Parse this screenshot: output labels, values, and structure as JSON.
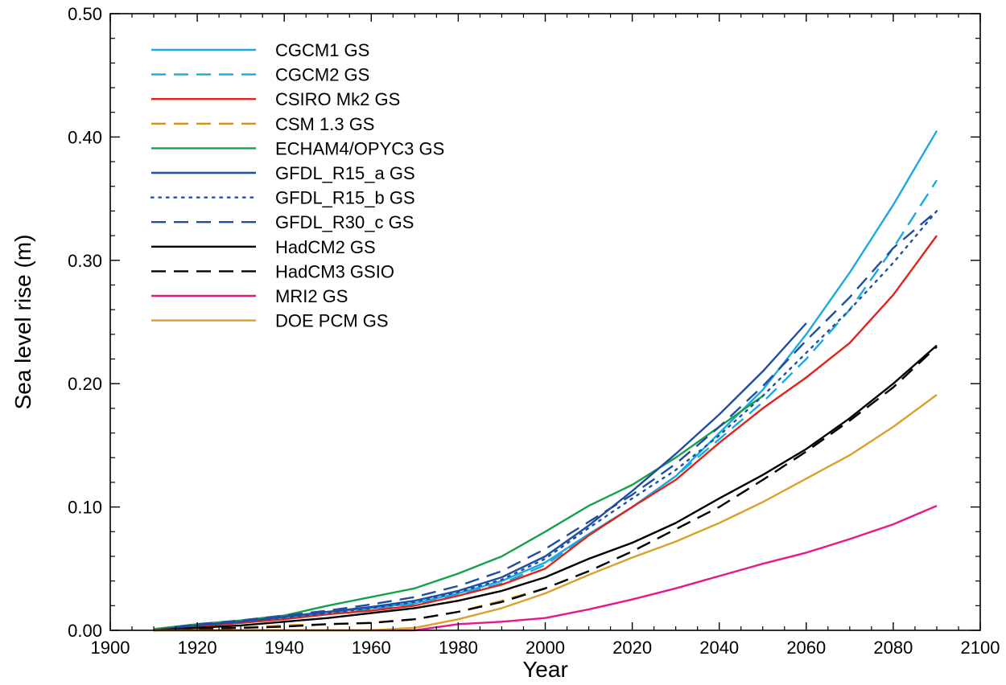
{
  "chart_data": {
    "type": "line",
    "title": "",
    "xlabel": "Year",
    "ylabel": "Sea level rise (m)",
    "xlim": [
      1900,
      2100
    ],
    "ylim": [
      0.0,
      0.5
    ],
    "x_ticks": [
      1900,
      1920,
      1940,
      1960,
      1980,
      2000,
      2020,
      2040,
      2060,
      2080,
      2100
    ],
    "x_tick_labels": [
      "1900",
      "1920",
      "1940",
      "1960",
      "1980",
      "2000",
      "2020",
      "2040",
      "2060",
      "2080",
      "2100"
    ],
    "y_ticks": [
      0.0,
      0.1,
      0.2,
      0.3,
      0.4,
      0.5
    ],
    "y_tick_labels": [
      "0.00",
      "0.10",
      "0.20",
      "0.30",
      "0.40",
      "0.50"
    ],
    "grid": false,
    "legend_position": "top-left",
    "series": [
      {
        "name": "CGCM1 GS",
        "color": "#1ba9e1",
        "dash": "solid",
        "x": [
          1910,
          1920,
          1930,
          1940,
          1950,
          1960,
          1970,
          1980,
          1990,
          2000,
          2010,
          2020,
          2030,
          2040,
          2050,
          2060,
          2070,
          2080,
          2090
        ],
        "y": [
          0.0,
          0.004,
          0.007,
          0.01,
          0.015,
          0.018,
          0.022,
          0.03,
          0.04,
          0.055,
          0.078,
          0.1,
          0.125,
          0.16,
          0.195,
          0.24,
          0.29,
          0.345,
          0.405
        ]
      },
      {
        "name": "CGCM2 GS",
        "color": "#1ba9e1",
        "dash": "dashed",
        "x": [
          1910,
          1920,
          1930,
          1940,
          1950,
          1960,
          1970,
          1980,
          1990,
          2000,
          2010,
          2020,
          2030,
          2040,
          2050,
          2060,
          2070,
          2080,
          2090
        ],
        "y": [
          0.0,
          0.004,
          0.007,
          0.01,
          0.014,
          0.017,
          0.021,
          0.029,
          0.038,
          0.053,
          0.077,
          0.1,
          0.125,
          0.155,
          0.185,
          0.22,
          0.26,
          0.31,
          0.365
        ]
      },
      {
        "name": "CSIRO Mk2 GS",
        "color": "#e2231a",
        "dash": "solid",
        "x": [
          1910,
          1920,
          1930,
          1940,
          1950,
          1960,
          1970,
          1980,
          1990,
          2000,
          2010,
          2020,
          2030,
          2040,
          2050,
          2060,
          2070,
          2080,
          2090
        ],
        "y": [
          0.0,
          0.003,
          0.006,
          0.009,
          0.013,
          0.016,
          0.02,
          0.028,
          0.037,
          0.05,
          0.077,
          0.1,
          0.122,
          0.152,
          0.18,
          0.205,
          0.233,
          0.272,
          0.32
        ]
      },
      {
        "name": "CSM 1.3 GS",
        "color": "#d9961b",
        "dash": "dashed",
        "x": [
          1910,
          1920,
          1930,
          1940,
          1950,
          1960,
          1970,
          1980,
          1990,
          2000
        ],
        "y": [
          0.0,
          0.001,
          0.002,
          0.004,
          0.005,
          0.006,
          0.009,
          0.015,
          0.024,
          0.034
        ]
      },
      {
        "name": "ECHAM4/OPYC3 GS",
        "color": "#15a14a",
        "dash": "solid",
        "x": [
          1910,
          1920,
          1930,
          1940,
          1950,
          1960,
          1970,
          1980,
          1990,
          2000,
          2010,
          2020,
          2030,
          2040,
          2050
        ],
        "y": [
          0.001,
          0.005,
          0.008,
          0.012,
          0.02,
          0.027,
          0.034,
          0.046,
          0.06,
          0.08,
          0.101,
          0.118,
          0.14,
          0.165,
          0.19
        ]
      },
      {
        "name": "GFDL_R15_a GS",
        "color": "#1f4ea1",
        "dash": "solid",
        "x": [
          1910,
          1920,
          1930,
          1940,
          1950,
          1960,
          1970,
          1980,
          1990,
          2000,
          2010,
          2020,
          2030,
          2040,
          2050,
          2060
        ],
        "y": [
          0.0,
          0.004,
          0.007,
          0.011,
          0.015,
          0.019,
          0.024,
          0.032,
          0.043,
          0.06,
          0.085,
          0.113,
          0.143,
          0.175,
          0.21,
          0.249
        ]
      },
      {
        "name": "GFDL_R15_b GS",
        "color": "#1f4ea1",
        "dash": "dotted",
        "x": [
          1910,
          1920,
          1930,
          1940,
          1950,
          1960,
          1970,
          1980,
          1990,
          2000,
          2010,
          2020,
          2030,
          2040,
          2050,
          2060,
          2070,
          2080,
          2090
        ],
        "y": [
          0.0,
          0.004,
          0.007,
          0.01,
          0.014,
          0.018,
          0.023,
          0.031,
          0.041,
          0.058,
          0.083,
          0.107,
          0.13,
          0.158,
          0.19,
          0.225,
          0.26,
          0.298,
          0.34
        ]
      },
      {
        "name": "GFDL_R30_c GS",
        "color": "#1f4ea1",
        "dash": "dashed",
        "x": [
          1910,
          1920,
          1930,
          1940,
          1950,
          1960,
          1970,
          1980,
          1990,
          2000,
          2010,
          2020,
          2030,
          2040,
          2050,
          2060,
          2070,
          2080,
          2090
        ],
        "y": [
          0.0,
          0.005,
          0.008,
          0.012,
          0.016,
          0.021,
          0.027,
          0.036,
          0.048,
          0.066,
          0.088,
          0.11,
          0.135,
          0.165,
          0.198,
          0.235,
          0.27,
          0.31,
          0.34
        ]
      },
      {
        "name": "HadCM2 GS",
        "color": "#000000",
        "dash": "solid",
        "x": [
          1910,
          1920,
          1930,
          1940,
          1950,
          1960,
          1970,
          1980,
          1990,
          2000,
          2010,
          2020,
          2030,
          2040,
          2050,
          2060,
          2070,
          2080,
          2090
        ],
        "y": [
          0.0,
          0.002,
          0.004,
          0.007,
          0.01,
          0.014,
          0.018,
          0.024,
          0.032,
          0.043,
          0.058,
          0.071,
          0.087,
          0.107,
          0.126,
          0.147,
          0.172,
          0.2,
          0.231
        ]
      },
      {
        "name": "HadCM3 GSIO",
        "color": "#000000",
        "dash": "dashed",
        "x": [
          1910,
          1920,
          1930,
          1940,
          1950,
          1960,
          1970,
          1980,
          1990,
          2000,
          2010,
          2020,
          2030,
          2040,
          2050,
          2060,
          2070,
          2080,
          2090
        ],
        "y": [
          0.0,
          0.001,
          0.002,
          0.003,
          0.005,
          0.006,
          0.009,
          0.015,
          0.023,
          0.034,
          0.048,
          0.064,
          0.082,
          0.1,
          0.122,
          0.145,
          0.17,
          0.197,
          0.23
        ]
      },
      {
        "name": "MRI2 GS",
        "color": "#e5198c",
        "dash": "solid",
        "x": [
          1910,
          1920,
          1930,
          1940,
          1950,
          1960,
          1970,
          1980,
          1990,
          2000,
          2010,
          2020,
          2030,
          2040,
          2050,
          2060,
          2070,
          2080,
          2090
        ],
        "y": [
          0.0,
          0.0,
          0.0,
          0.0,
          0.0,
          0.0,
          0.0,
          0.005,
          0.007,
          0.01,
          0.017,
          0.025,
          0.034,
          0.044,
          0.054,
          0.063,
          0.074,
          0.086,
          0.101
        ]
      },
      {
        "name": "DOE PCM GS",
        "color": "#d9a12b",
        "dash": "solid",
        "x": [
          1910,
          1920,
          1930,
          1940,
          1950,
          1960,
          1970,
          1980,
          1990,
          2000,
          2010,
          2020,
          2030,
          2040,
          2050,
          2060,
          2070,
          2080,
          2090
        ],
        "y": [
          0.0,
          0.0,
          0.0,
          0.0,
          0.0,
          0.0,
          0.002,
          0.009,
          0.018,
          0.03,
          0.045,
          0.059,
          0.072,
          0.087,
          0.104,
          0.123,
          0.142,
          0.165,
          0.191
        ]
      }
    ]
  }
}
